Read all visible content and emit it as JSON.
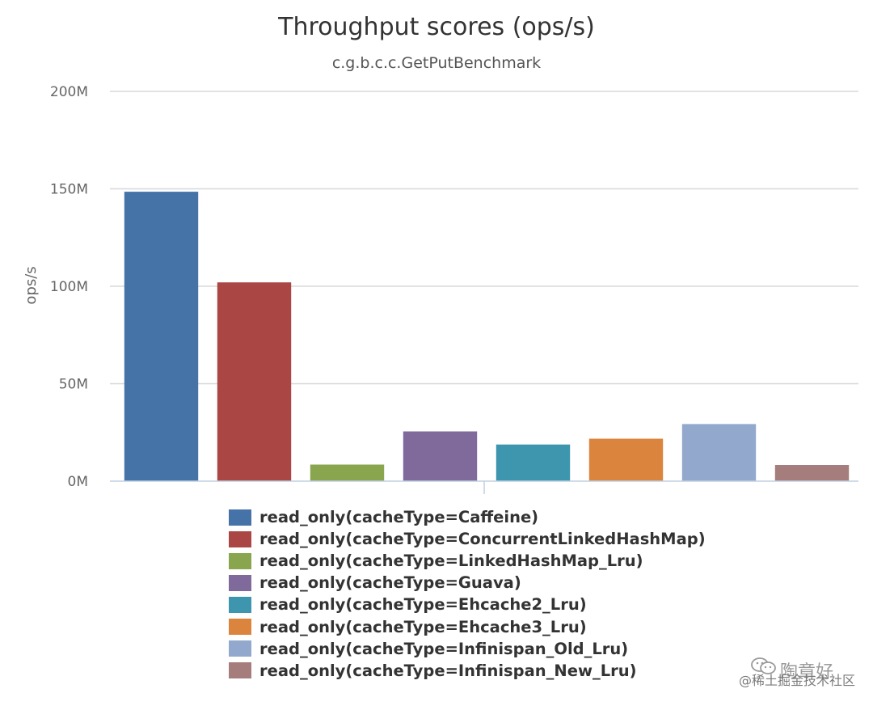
{
  "chart_data": {
    "type": "bar",
    "title": "Throughput scores (ops/s)",
    "subtitle": "c.g.b.c.c.GetPutBenchmark",
    "ylabel": "ops/s",
    "xlabel": "",
    "ylim": [
      0,
      200000000
    ],
    "yticks": [
      {
        "value": 0,
        "label": "0M"
      },
      {
        "value": 50000000,
        "label": "50M"
      },
      {
        "value": 100000000,
        "label": "100M"
      },
      {
        "value": 150000000,
        "label": "150M"
      },
      {
        "value": 200000000,
        "label": "200M"
      }
    ],
    "grid": true,
    "legend_position": "bottom",
    "series": [
      {
        "name": "read_only(cacheType=Caffeine)",
        "color": "#4572a7",
        "value": 148500000
      },
      {
        "name": "read_only(cacheType=ConcurrentLinkedHashMap)",
        "color": "#aa4643",
        "value": 102000000
      },
      {
        "name": "read_only(cacheType=LinkedHashMap_Lru)",
        "color": "#89a54e",
        "value": 8500000
      },
      {
        "name": "read_only(cacheType=Guava)",
        "color": "#80699b",
        "value": 25500000
      },
      {
        "name": "read_only(cacheType=Ehcache2_Lru)",
        "color": "#3d96ae",
        "value": 18800000
      },
      {
        "name": "read_only(cacheType=Ehcache3_Lru)",
        "color": "#db843d",
        "value": 21800000
      },
      {
        "name": "read_only(cacheType=Infinispan_Old_Lru)",
        "color": "#92a8cd",
        "value": 29300000
      },
      {
        "name": "read_only(cacheType=Infinispan_New_Lru)",
        "color": "#a47d7c",
        "value": 8300000
      }
    ]
  },
  "watermark": {
    "account": "陶章好",
    "source": "@稀土掘金技术社区"
  }
}
